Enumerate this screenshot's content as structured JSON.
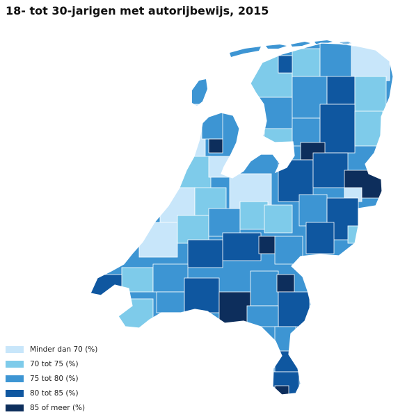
{
  "title": "18- tot 30-jarigen met autorijbewijs, 2015",
  "legend": {
    "items": [
      {
        "label": "Minder dan 70 (%)",
        "color": "#c8e6fa",
        "class": "c1"
      },
      {
        "label": "70 tot 75 (%)",
        "color": "#7ecbea",
        "class": "c2"
      },
      {
        "label": "75 tot 80 (%)",
        "color": "#3d95d3",
        "class": "c3"
      },
      {
        "label": "80 tot 85 (%)",
        "color": "#0f57a0",
        "class": "c4"
      },
      {
        "label": "85 of meer (%)",
        "color": "#0d2e5c",
        "class": "c5"
      }
    ]
  },
  "map": {
    "country": "Nederland",
    "unit": "gemeenten",
    "border_color": "#ffffff"
  }
}
